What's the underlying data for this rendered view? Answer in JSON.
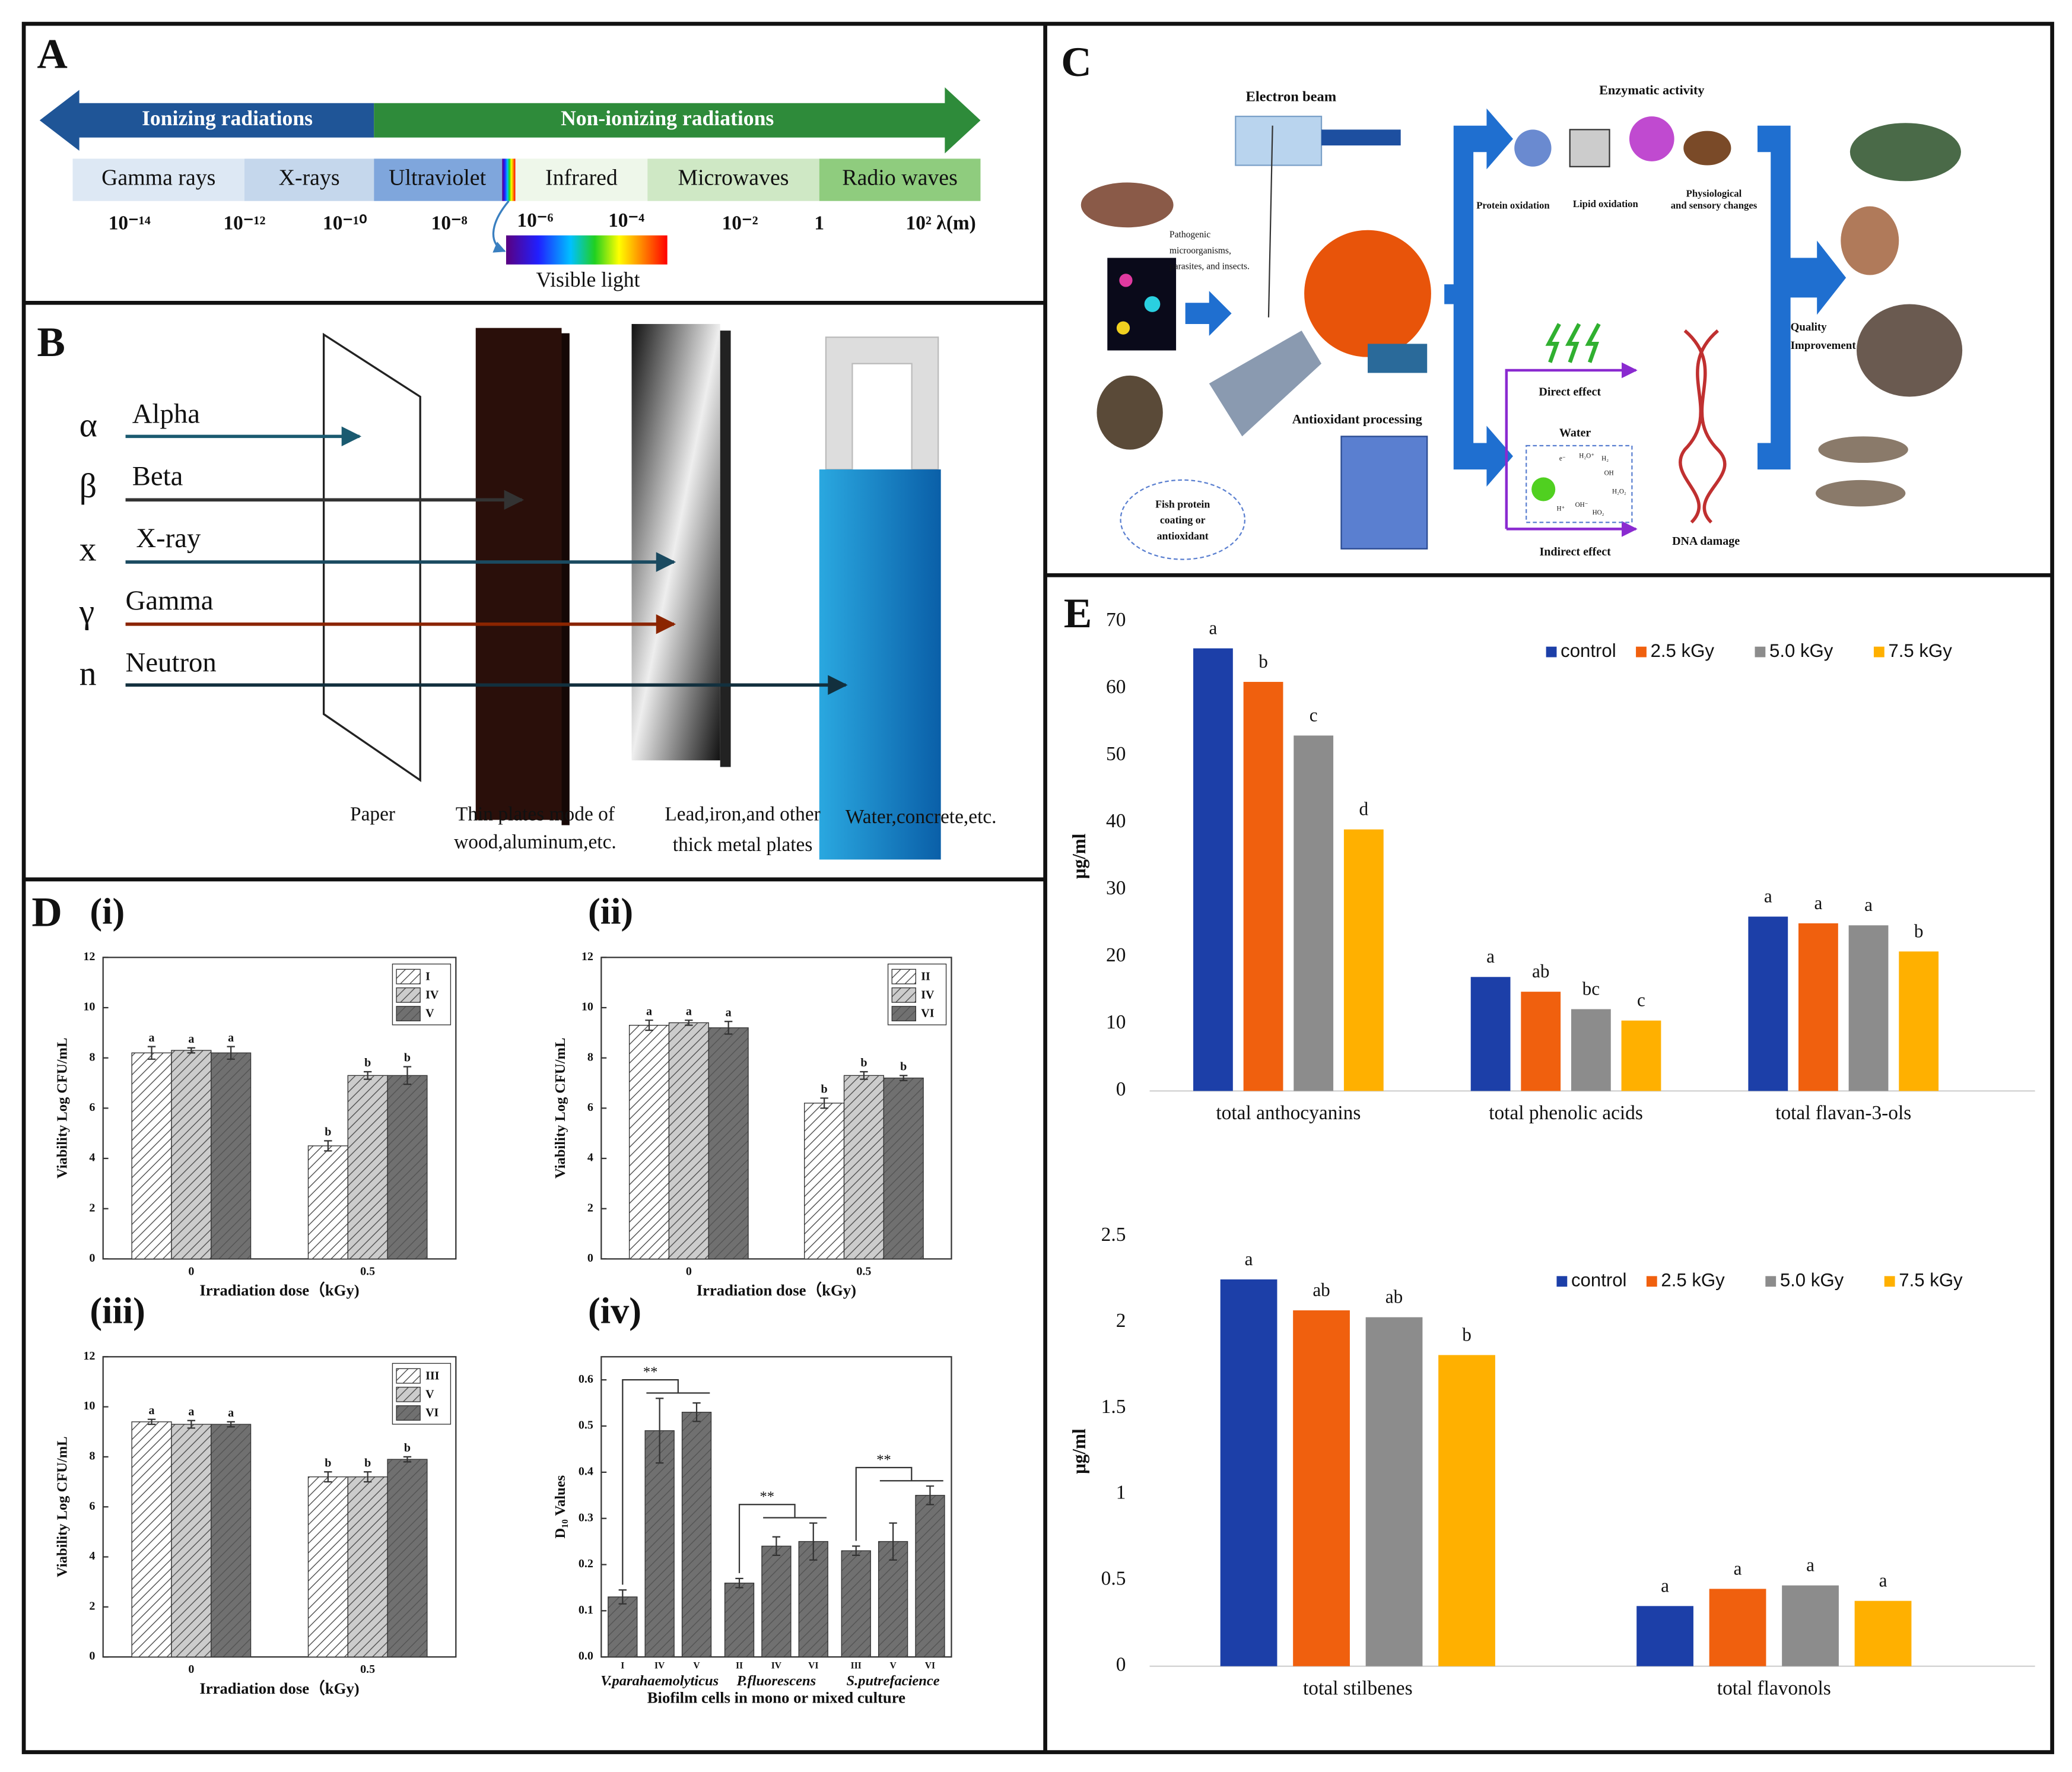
{
  "panel_a": {
    "label": "A",
    "ionizing": "Ionizing radiations",
    "non_ionizing": "Non-ionizing radiations",
    "bands": [
      "Gamma rays",
      "X-rays",
      "Ultraviolet",
      "Infrared",
      "Microwaves",
      "Radio waves"
    ],
    "wavelengths": [
      "10⁻¹⁴",
      "10⁻¹²",
      "10⁻¹⁰",
      "10⁻⁸",
      "10⁻⁶",
      "10⁻⁴",
      "10⁻²",
      "1",
      "10² λ(m)"
    ],
    "visible": "Visible light"
  },
  "panel_b": {
    "label": "B",
    "rays": [
      {
        "symbol": "α",
        "name": "Alpha"
      },
      {
        "symbol": "β",
        "name": "Beta"
      },
      {
        "symbol": "x",
        "name": "X-ray"
      },
      {
        "symbol": "γ",
        "name": "Gamma"
      },
      {
        "symbol": "n",
        "name": "Neutron"
      }
    ],
    "barriers": [
      [
        "Paper"
      ],
      [
        "Thin plates mode of",
        "wood,aluminum,etc."
      ],
      [
        "Lead,iron,and other",
        "thick metal plates"
      ],
      [
        "Water,concrete,etc."
      ]
    ]
  },
  "panel_c": {
    "label": "C",
    "electron_beam": "Electron beam",
    "enzymatic": "Enzymatic activity",
    "protein_ox": "Protein oxidation",
    "lipid_ox": "Lipid oxidation",
    "physio": [
      "Physiological",
      "and sensory changes"
    ],
    "pathogenic": [
      "Pathogenic",
      "microorganisms,",
      "parasites, and insects."
    ],
    "antioxidant": "Antioxidant processing",
    "coating": [
      "Fish protein",
      "coating or",
      "antioxidant"
    ],
    "direct": "Direct effect",
    "water": "Water",
    "radicals": [
      "e⁻",
      "H₂O⁺",
      "H₂",
      "OH",
      "H₂O₂",
      "OH⁻",
      "H⁺",
      "HO₂"
    ],
    "indirect": "Indirect effect",
    "dna": "DNA damage",
    "quality": [
      "Quality",
      "Improvement"
    ]
  },
  "panel_d": {
    "label": "D"
  },
  "panel_e": {
    "label": "E"
  },
  "chart_data": [
    {
      "type": "bar",
      "title": "(i)",
      "ylabel": "Viability Log CFU/mL",
      "xlabel": "Irradiation dose（kGy)",
      "categories": [
        "0",
        "0.5"
      ],
      "ylim": [
        0,
        12
      ],
      "yticks": [
        0,
        2,
        4,
        6,
        8,
        10,
        12
      ],
      "series": [
        {
          "name": "I",
          "color": "#ffffff",
          "values": [
            8.2,
            4.5
          ],
          "errors": [
            0.25,
            0.2
          ],
          "letters": [
            "a",
            "b"
          ]
        },
        {
          "name": "IV",
          "color": "#cccccc",
          "values": [
            8.3,
            7.3
          ],
          "errors": [
            0.1,
            0.15
          ],
          "letters": [
            "a",
            "b"
          ]
        },
        {
          "name": "V",
          "color": "#707070",
          "values": [
            8.2,
            7.3
          ],
          "errors": [
            0.25,
            0.35
          ],
          "letters": [
            "a",
            "b"
          ]
        }
      ]
    },
    {
      "type": "bar",
      "title": "(ii)",
      "ylabel": "Viability Log CFU/mL",
      "xlabel": "Irradiation dose（kGy)",
      "categories": [
        "0",
        "0.5"
      ],
      "ylim": [
        0,
        12
      ],
      "yticks": [
        0,
        2,
        4,
        6,
        8,
        10,
        12
      ],
      "series": [
        {
          "name": "II",
          "color": "#ffffff",
          "values": [
            9.3,
            6.2
          ],
          "errors": [
            0.2,
            0.2
          ],
          "letters": [
            "a",
            "b"
          ]
        },
        {
          "name": "IV",
          "color": "#cccccc",
          "values": [
            9.4,
            7.3
          ],
          "errors": [
            0.1,
            0.15
          ],
          "letters": [
            "a",
            "b"
          ]
        },
        {
          "name": "VI",
          "color": "#707070",
          "values": [
            9.2,
            7.2
          ],
          "errors": [
            0.25,
            0.1
          ],
          "letters": [
            "a",
            "b"
          ]
        }
      ]
    },
    {
      "type": "bar",
      "title": "(iii)",
      "ylabel": "Viability Log CFU/mL",
      "xlabel": "Irradiation dose（kGy)",
      "categories": [
        "0",
        "0.5"
      ],
      "ylim": [
        0,
        12
      ],
      "yticks": [
        0,
        2,
        4,
        6,
        8,
        10,
        12
      ],
      "series": [
        {
          "name": "III",
          "color": "#ffffff",
          "values": [
            9.4,
            7.2
          ],
          "errors": [
            0.1,
            0.2
          ],
          "letters": [
            "a",
            "b"
          ]
        },
        {
          "name": "V",
          "color": "#cccccc",
          "values": [
            9.3,
            7.2
          ],
          "errors": [
            0.15,
            0.2
          ],
          "letters": [
            "a",
            "b"
          ]
        },
        {
          "name": "VI",
          "color": "#707070",
          "values": [
            9.3,
            7.9
          ],
          "errors": [
            0.1,
            0.1
          ],
          "letters": [
            "a",
            "b"
          ]
        }
      ]
    },
    {
      "type": "bar",
      "title": "(iv)",
      "ylabel": "D₁₀ Values",
      "xlabel": "Biofilm cells in mono or mixed culture",
      "color": "#707070",
      "ylim": [
        0,
        0.65
      ],
      "yticks": [
        {
          "value": 0,
          "label": "0.0"
        },
        0.1,
        0.2,
        0.3,
        0.4,
        0.5,
        0.6
      ],
      "groups": [
        {
          "name": "V.parahaemolyticus",
          "labels": [
            "I",
            "IV",
            "V"
          ],
          "values": [
            0.13,
            0.49,
            0.53
          ],
          "errors": [
            0.015,
            0.07,
            0.02
          ]
        },
        {
          "name": "P.fluorescens",
          "labels": [
            "II",
            "IV",
            "VI"
          ],
          "values": [
            0.16,
            0.24,
            0.25
          ],
          "errors": [
            0.01,
            0.02,
            0.04
          ]
        },
        {
          "name": "S.putrefacience",
          "labels": [
            "III",
            "V",
            "VI"
          ],
          "values": [
            0.23,
            0.25,
            0.35
          ],
          "errors": [
            0.01,
            0.04,
            0.02
          ]
        }
      ],
      "annotations": [
        "**",
        "**",
        "**"
      ]
    },
    {
      "type": "bar",
      "ylabel": "μg/ml",
      "categories": [
        "total anthocyanins",
        "total phenolic acids",
        "total flavan-3-ols"
      ],
      "ylim": [
        0,
        70
      ],
      "yticks": [
        0,
        10,
        20,
        30,
        40,
        50,
        60,
        70
      ],
      "legend": "top-right",
      "series": [
        {
          "name": "control",
          "color": "#1c3fa8",
          "values": [
            66,
            17,
            26
          ],
          "letters": [
            "a",
            "a",
            "a"
          ]
        },
        {
          "name": "2.5 kGy",
          "color": "#f0600e",
          "values": [
            61,
            14.8,
            25
          ],
          "letters": [
            "b",
            "ab",
            "a"
          ]
        },
        {
          "name": "5.0 kGy",
          "color": "#8c8c8c",
          "values": [
            53,
            12.2,
            24.7
          ],
          "letters": [
            "c",
            "bc",
            "a"
          ]
        },
        {
          "name": "7.5 kGy",
          "color": "#ffb000",
          "values": [
            39,
            10.5,
            20.8
          ],
          "letters": [
            "d",
            "c",
            "b"
          ]
        }
      ]
    },
    {
      "type": "bar",
      "ylabel": "μg/ml",
      "categories": [
        "total stilbenes",
        "total flavonols"
      ],
      "ylim": [
        0,
        2.5
      ],
      "yticks": [
        0,
        0.5,
        1,
        1.5,
        2,
        2.5
      ],
      "legend": "top-right",
      "series": [
        {
          "name": "control",
          "color": "#1c3fa8",
          "values": [
            2.25,
            0.35
          ],
          "letters": [
            "a",
            "a"
          ]
        },
        {
          "name": "2.5 kGy",
          "color": "#f0600e",
          "values": [
            2.07,
            0.45
          ],
          "letters": [
            "ab",
            "a"
          ]
        },
        {
          "name": "5.0 kGy",
          "color": "#8c8c8c",
          "values": [
            2.03,
            0.47
          ],
          "letters": [
            "ab",
            "a"
          ]
        },
        {
          "name": "7.5 kGy",
          "color": "#ffb000",
          "values": [
            1.81,
            0.38
          ],
          "letters": [
            "b",
            "a"
          ]
        }
      ]
    }
  ]
}
